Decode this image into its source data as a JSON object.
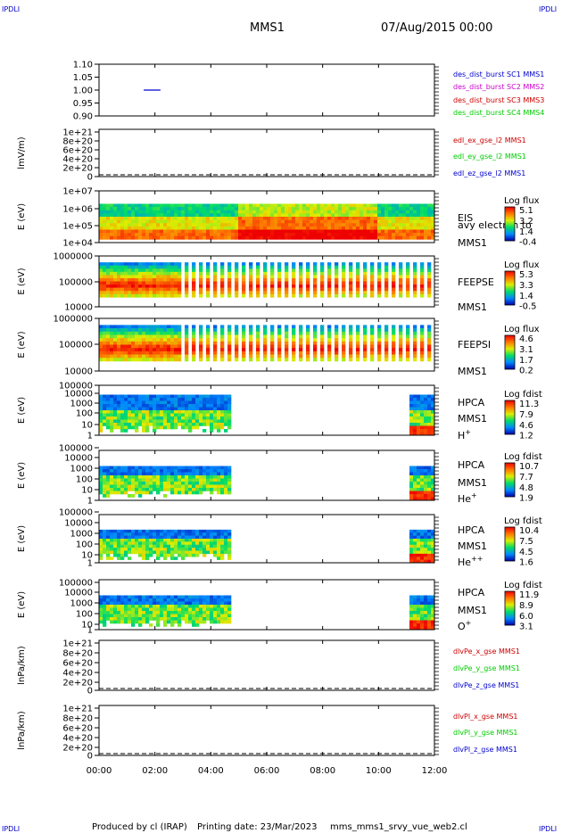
{
  "header": {
    "corner_label": "IPDLI",
    "title": "MMS1",
    "datetime": "07/Aug/2015 00:00"
  },
  "footer": {
    "producer": "Produced by cl (IRAP)",
    "printing": "Printing date: 23/Mar/2023",
    "script": "mms_mms1_srvy_vue_web2.cl"
  },
  "colors": {
    "blue": "#0000cc",
    "magenta": "#cc00cc",
    "red": "#cc0000",
    "green": "#00cc00",
    "frame": "#000000"
  },
  "chart_data": {
    "type": "heatmap",
    "time_axis": {
      "ticks": [
        "00:00",
        "02:00",
        "04:00",
        "06:00",
        "08:00",
        "10:00",
        "12:00"
      ],
      "range_hours": [
        0,
        12
      ]
    },
    "panels": [
      {
        "id": "burst",
        "type": "line",
        "yticks": [
          "1.10",
          "1.05",
          "1.00",
          "0.95",
          "0.90"
        ],
        "ylim": [
          0.9,
          1.1
        ],
        "series": [
          {
            "name": "des_dist_burst SC1 MMS1",
            "color": "#0000cc",
            "x": [
              1.6,
              2.2
            ],
            "y": [
              1.0,
              1.0
            ]
          }
        ],
        "legend": [
          {
            "text": "des_dist_burst SC1 MMS1",
            "color": "#0000cc"
          },
          {
            "text": "des_dist_burst SC2 MMS2",
            "color": "#cc00cc"
          },
          {
            "text": "des_dist_burst SC3 MMS3",
            "color": "#cc0000"
          },
          {
            "text": "des_dist_burst SC4 MMS4",
            "color": "#00cc00"
          }
        ]
      },
      {
        "id": "edi",
        "type": "line",
        "ylabel": "lmV/m)",
        "yticks": [
          "1e+21",
          "8e+20",
          "6e+20",
          "4e+20",
          "2e+20",
          "0"
        ],
        "ylim": [
          0,
          1e+21
        ],
        "zero_line": true,
        "legend": [
          {
            "text": "edl_ex_gse_l2 MMS1",
            "color": "#cc0000"
          },
          {
            "text": "edl_ey_gse_l2 MMS1",
            "color": "#00cc00"
          },
          {
            "text": "edl_ez_gse_l2 MMS1",
            "color": "#0000cc"
          }
        ]
      },
      {
        "id": "eis",
        "type": "heatmap",
        "ylabel": "E (eV)",
        "yticks": [
          "1e+07",
          "1e+06",
          "1e+05",
          "1e+04"
        ],
        "labels": [
          "EIS",
          "avy electron to",
          "MMS1"
        ],
        "colorbar": {
          "title": "Log flux",
          "ticks": [
            "5.1",
            "3.2",
            "1.4",
            "-0.4"
          ]
        }
      },
      {
        "id": "feepse",
        "type": "heatmap",
        "ylabel": "E (eV)",
        "yticks": [
          "1000000",
          "100000",
          "10000"
        ],
        "labels": [
          "FEEPSE",
          "MMS1"
        ],
        "colorbar": {
          "title": "Log flux",
          "ticks": [
            "5.3",
            "3.3",
            "1.4",
            "-0.5"
          ]
        }
      },
      {
        "id": "feepsi",
        "type": "heatmap",
        "ylabel": "E (eV)",
        "yticks": [
          "1000000",
          "100000",
          "10000"
        ],
        "labels": [
          "FEEPSI",
          "MMS1"
        ],
        "colorbar": {
          "title": "Log flux",
          "ticks": [
            "4.6",
            "3.1",
            "1.7",
            "0.2"
          ]
        }
      },
      {
        "id": "hpca_h",
        "type": "heatmap",
        "ylabel": "E (eV)",
        "yticks": [
          "100000",
          "10000",
          "1000",
          "100",
          "10",
          "1"
        ],
        "labels": [
          "HPCA",
          "MMS1",
          "H+"
        ],
        "colorbar": {
          "title": "Log fdist",
          "ticks": [
            "11.3",
            "7.9",
            "4.6",
            "1.2"
          ]
        }
      },
      {
        "id": "hpca_he",
        "type": "heatmap",
        "ylabel": "E (eV)",
        "yticks": [
          "100000",
          "10000",
          "1000",
          "100",
          "10",
          "1"
        ],
        "labels": [
          "HPCA",
          "MMS1",
          "He+"
        ],
        "colorbar": {
          "title": "Log fdist",
          "ticks": [
            "10.7",
            "7.7",
            "4.8",
            "1.9"
          ]
        }
      },
      {
        "id": "hpca_hepp",
        "type": "heatmap",
        "ylabel": "E (eV)",
        "yticks": [
          "100000",
          "10000",
          "1000",
          "100",
          "10",
          "1"
        ],
        "labels": [
          "HPCA",
          "MMS1",
          "He++"
        ],
        "colorbar": {
          "title": "Log fdist",
          "ticks": [
            "10.4",
            "7.5",
            "4.5",
            "1.6"
          ]
        }
      },
      {
        "id": "hpca_o",
        "type": "heatmap",
        "ylabel": "E (eV)",
        "yticks": [
          "100000",
          "10000",
          "1000",
          "100",
          "10",
          "1"
        ],
        "labels": [
          "HPCA",
          "MMS1",
          "O+"
        ],
        "colorbar": {
          "title": "Log fdist",
          "ticks": [
            "11.9",
            "8.9",
            "6.0",
            "3.1"
          ]
        }
      },
      {
        "id": "divpe",
        "type": "line",
        "ylabel": "lnPa/km)",
        "yticks": [
          "1e+21",
          "8e+20",
          "6e+20",
          "4e+20",
          "2e+20",
          "0"
        ],
        "ylim": [
          0,
          1e+21
        ],
        "zero_line": true,
        "legend": [
          {
            "text": "dlvPe_x_gse MMS1",
            "color": "#cc0000"
          },
          {
            "text": "dlvPe_y_gse MMS1",
            "color": "#00cc00"
          },
          {
            "text": "dlvPe_z_gse MMS1",
            "color": "#0000cc"
          }
        ]
      },
      {
        "id": "divpi",
        "type": "line",
        "ylabel": "lnPa/km)",
        "yticks": [
          "1e+21",
          "8e+20",
          "6e+20",
          "4e+20",
          "2e+20",
          "0"
        ],
        "ylim": [
          0,
          1e+21
        ],
        "zero_line": true,
        "legend": [
          {
            "text": "dlvPl_x_gse MMS1",
            "color": "#cc0000"
          },
          {
            "text": "dlvPl_y_gse MMS1",
            "color": "#00cc00"
          },
          {
            "text": "dlvPl_z_gse MMS1",
            "color": "#0000cc"
          }
        ]
      }
    ]
  }
}
